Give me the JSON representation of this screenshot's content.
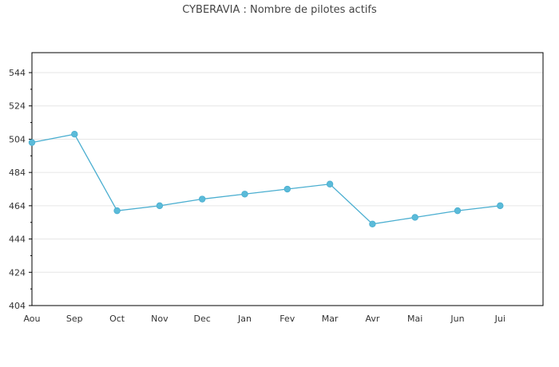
{
  "chart_data": {
    "type": "line",
    "title": "CYBERAVIA : Nombre de pilotes actifs",
    "categories": [
      "Aou",
      "Sep",
      "Oct",
      "Nov",
      "Dec",
      "Jan",
      "Fev",
      "Mar",
      "Avr",
      "Mai",
      "Jun",
      "Jui"
    ],
    "series": [
      {
        "values": [
          502,
          507,
          461,
          464,
          468,
          471,
          474,
          477,
          453,
          457,
          461,
          464
        ],
        "color": "#5bbbd9"
      }
    ],
    "ylim": [
      404,
      556
    ],
    "yticks": [
      404,
      424,
      444,
      464,
      484,
      504,
      524,
      544
    ],
    "grid": true,
    "line_color": "#4aaed0",
    "marker_color": "#5bbbd9"
  }
}
